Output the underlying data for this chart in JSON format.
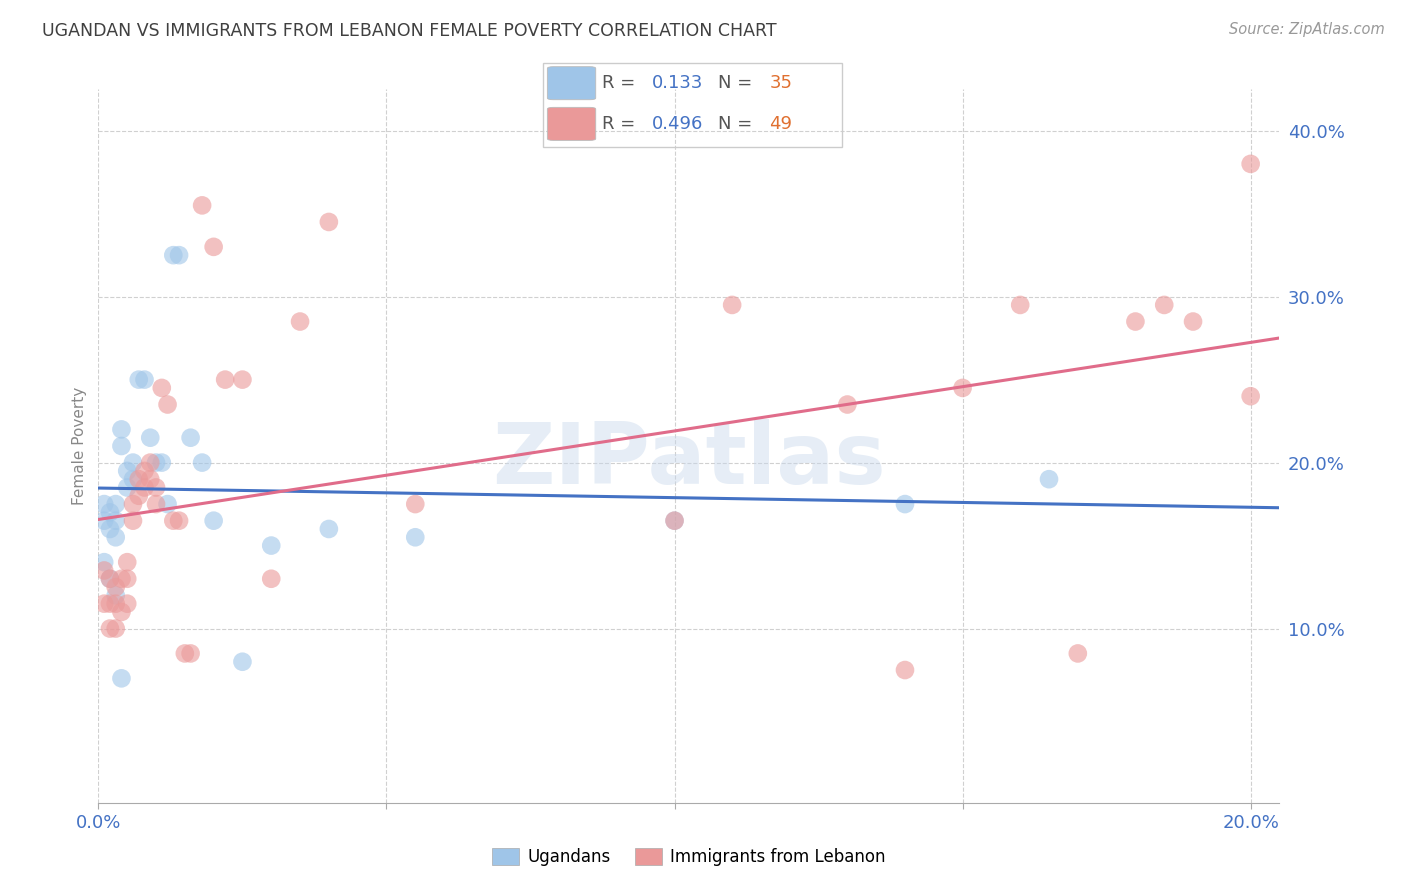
{
  "title": "UGANDAN VS IMMIGRANTS FROM LEBANON FEMALE POVERTY CORRELATION CHART",
  "source": "Source: ZipAtlas.com",
  "ylabel": "Female Poverty",
  "title_color": "#404040",
  "source_color": "#999999",
  "axis_tick_color": "#4472c4",
  "ylabel_color": "#888888",
  "watermark_text": "ZIPatlas",
  "xlim": [
    0.0,
    0.205
  ],
  "ylim": [
    -0.005,
    0.425
  ],
  "yticks": [
    0.1,
    0.2,
    0.3,
    0.4
  ],
  "xticks": [
    0.0,
    0.05,
    0.1,
    0.15,
    0.2
  ],
  "blue_scatter_color": "#9fc5e8",
  "pink_scatter_color": "#ea9999",
  "blue_line_color": "#4472c4",
  "pink_line_color": "#e06c8a",
  "legend_R_blue": "0.133",
  "legend_N_blue": "35",
  "legend_R_pink": "0.496",
  "legend_N_pink": "49",
  "legend_num_color": "#4472c4",
  "legend_N_num_color": "#e07030",
  "ugandans_x": [
    0.001,
    0.001,
    0.002,
    0.002,
    0.003,
    0.003,
    0.003,
    0.004,
    0.004,
    0.005,
    0.005,
    0.006,
    0.006,
    0.007,
    0.008,
    0.009,
    0.01,
    0.011,
    0.012,
    0.013,
    0.014,
    0.016,
    0.018,
    0.02,
    0.025,
    0.03,
    0.04,
    0.055,
    0.1,
    0.14,
    0.165,
    0.001,
    0.002,
    0.003,
    0.004
  ],
  "ugandans_y": [
    0.175,
    0.165,
    0.17,
    0.16,
    0.175,
    0.165,
    0.155,
    0.22,
    0.21,
    0.195,
    0.185,
    0.2,
    0.19,
    0.25,
    0.25,
    0.215,
    0.2,
    0.2,
    0.175,
    0.325,
    0.325,
    0.215,
    0.2,
    0.165,
    0.08,
    0.15,
    0.16,
    0.155,
    0.165,
    0.175,
    0.19,
    0.14,
    0.13,
    0.12,
    0.07
  ],
  "lebanon_x": [
    0.001,
    0.001,
    0.002,
    0.002,
    0.002,
    0.003,
    0.003,
    0.003,
    0.004,
    0.004,
    0.005,
    0.005,
    0.005,
    0.006,
    0.006,
    0.007,
    0.007,
    0.008,
    0.008,
    0.009,
    0.009,
    0.01,
    0.01,
    0.011,
    0.012,
    0.013,
    0.014,
    0.015,
    0.016,
    0.018,
    0.02,
    0.022,
    0.025,
    0.03,
    0.035,
    0.04,
    0.055,
    0.1,
    0.11,
    0.13,
    0.14,
    0.15,
    0.16,
    0.17,
    0.18,
    0.185,
    0.19,
    0.2,
    0.2
  ],
  "lebanon_y": [
    0.135,
    0.115,
    0.13,
    0.115,
    0.1,
    0.125,
    0.115,
    0.1,
    0.13,
    0.11,
    0.14,
    0.13,
    0.115,
    0.175,
    0.165,
    0.19,
    0.18,
    0.195,
    0.185,
    0.2,
    0.19,
    0.185,
    0.175,
    0.245,
    0.235,
    0.165,
    0.165,
    0.085,
    0.085,
    0.355,
    0.33,
    0.25,
    0.25,
    0.13,
    0.285,
    0.345,
    0.175,
    0.165,
    0.295,
    0.235,
    0.075,
    0.245,
    0.295,
    0.085,
    0.285,
    0.295,
    0.285,
    0.38,
    0.24
  ]
}
